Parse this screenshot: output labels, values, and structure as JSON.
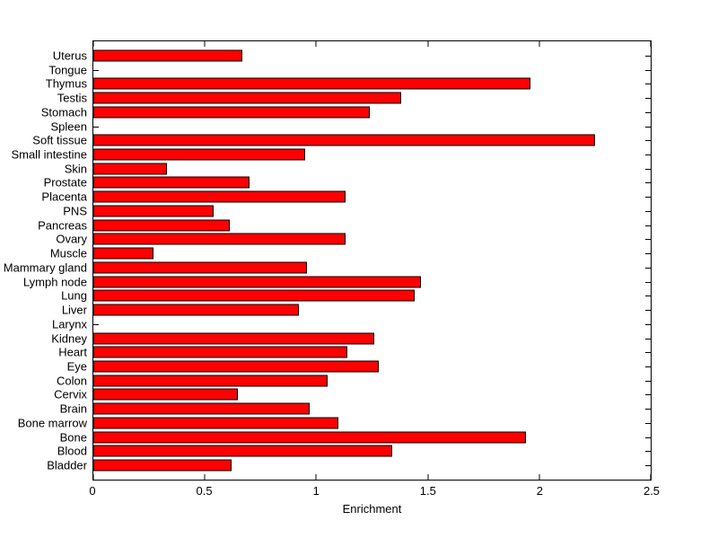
{
  "chart_data": {
    "type": "bar",
    "orientation": "horizontal",
    "title": "",
    "xlabel": "Enrichment",
    "ylabel": "",
    "xlim": [
      0,
      2.5
    ],
    "x_tick_values": [
      0,
      0.5,
      1,
      1.5,
      2,
      2.5
    ],
    "x_tick_labels": [
      "0",
      "0.5",
      "1",
      "1.5",
      "2",
      "2.5"
    ],
    "grid": "off",
    "legend": "none",
    "bar_color": "#ff0000",
    "bar_edge_color": "#000000",
    "axis_color": "#000000",
    "background_color": "#ffffff",
    "rows": [
      {
        "label": "Uterus",
        "value": 0.67
      },
      {
        "label": "Tongue",
        "value": 0
      },
      {
        "label": "Thymus",
        "value": 1.96
      },
      {
        "label": "Testis",
        "value": 1.38
      },
      {
        "label": "Stomach",
        "value": 1.24
      },
      {
        "label": "Spleen",
        "value": 0
      },
      {
        "label": "Soft tissue",
        "value": 2.25
      },
      {
        "label": "Small intestine",
        "value": 0.95
      },
      {
        "label": "Skin",
        "value": 0.33
      },
      {
        "label": "Prostate",
        "value": 0.7
      },
      {
        "label": "Placenta",
        "value": 1.13
      },
      {
        "label": "PNS",
        "value": 0.54
      },
      {
        "label": "Pancreas",
        "value": 0.61
      },
      {
        "label": "Ovary",
        "value": 1.13
      },
      {
        "label": "Muscle",
        "value": 0.27
      },
      {
        "label": "Mammary gland",
        "value": 0.96
      },
      {
        "label": "Lymph node",
        "value": 1.47
      },
      {
        "label": "Lung",
        "value": 1.44
      },
      {
        "label": "Liver",
        "value": 0.92
      },
      {
        "label": "Larynx",
        "value": 0
      },
      {
        "label": "Kidney",
        "value": 1.26
      },
      {
        "label": "Heart",
        "value": 1.14
      },
      {
        "label": "Eye",
        "value": 1.28
      },
      {
        "label": "Colon",
        "value": 1.05
      },
      {
        "label": "Cervix",
        "value": 0.65
      },
      {
        "label": "Brain",
        "value": 0.97
      },
      {
        "label": "Bone marrow",
        "value": 1.1
      },
      {
        "label": "Bone",
        "value": 1.94
      },
      {
        "label": "Blood",
        "value": 1.34
      },
      {
        "label": "Bladder",
        "value": 0.62
      }
    ]
  }
}
